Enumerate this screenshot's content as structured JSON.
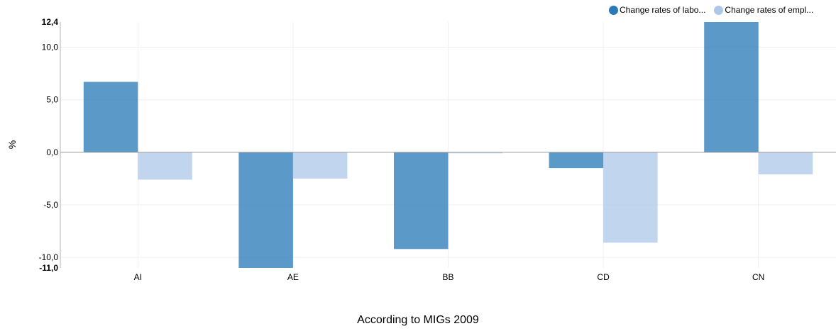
{
  "chart_data": {
    "type": "bar",
    "categories": [
      "AI",
      "AE",
      "BB",
      "CD",
      "CN"
    ],
    "series": [
      {
        "name": "Change rates of labo...",
        "color": "#2a7ab9",
        "values": [
          6.7,
          -11.0,
          -9.2,
          -1.5,
          12.4
        ]
      },
      {
        "name": "Change rates of empl...",
        "color": "#aec7e8",
        "values": [
          -2.6,
          -2.5,
          -0.1,
          -8.6,
          -2.1
        ]
      }
    ],
    "ylim": [
      -11.0,
      12.4
    ],
    "yticks": [
      {
        "value": -11.0,
        "label": "-11,0",
        "bold": true
      },
      {
        "value": -10.0,
        "label": "-10,0",
        "bold": false
      },
      {
        "value": -5.0,
        "label": "-5,0",
        "bold": false
      },
      {
        "value": 0.0,
        "label": "0,0",
        "bold": false
      },
      {
        "value": 5.0,
        "label": "5,0",
        "bold": false
      },
      {
        "value": 10.0,
        "label": "10,0",
        "bold": false
      },
      {
        "value": 12.4,
        "label": "12,4",
        "bold": true
      }
    ],
    "ylabel": "%",
    "xlabel": "According to MIGs 2009",
    "grid": true,
    "legend": "top-right"
  }
}
